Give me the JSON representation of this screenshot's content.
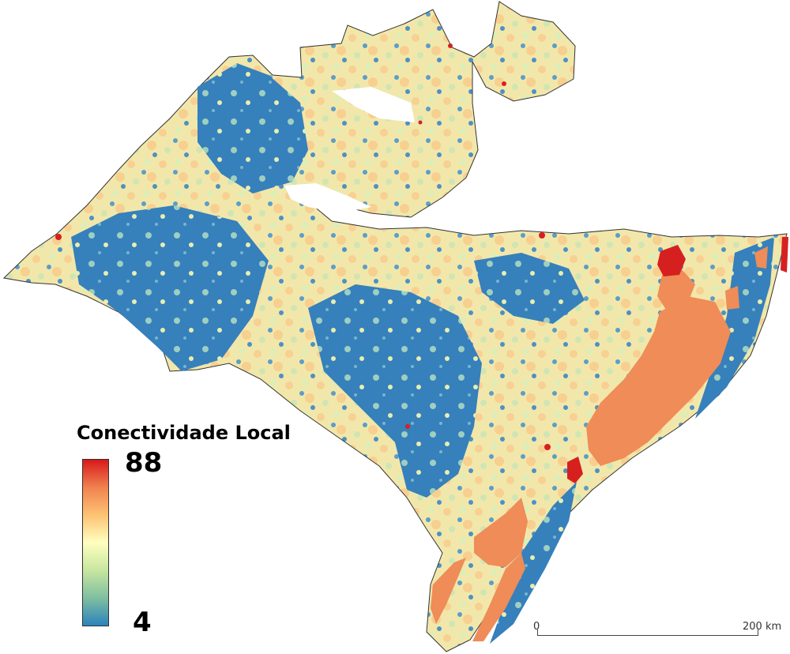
{
  "legend": {
    "title": "Conectividade Local",
    "max_label": "88",
    "min_label": "4",
    "gradient_colors": [
      "#d7191c",
      "#f0824f",
      "#fdc274",
      "#ffffbf",
      "#c7e6a0",
      "#7fbfa0",
      "#2b83ba"
    ]
  },
  "scale_bar": {
    "start_label": "0",
    "end_label": "200 km"
  },
  "colors": {
    "low_connectivity": "#2f7fbd",
    "mid_low": "#a8d3b8",
    "mid": "#f4ecb0",
    "mid_high": "#f8c98a",
    "high": "#ef8c58",
    "max": "#d62020",
    "water": "#ffffff",
    "outline": "#333333"
  }
}
